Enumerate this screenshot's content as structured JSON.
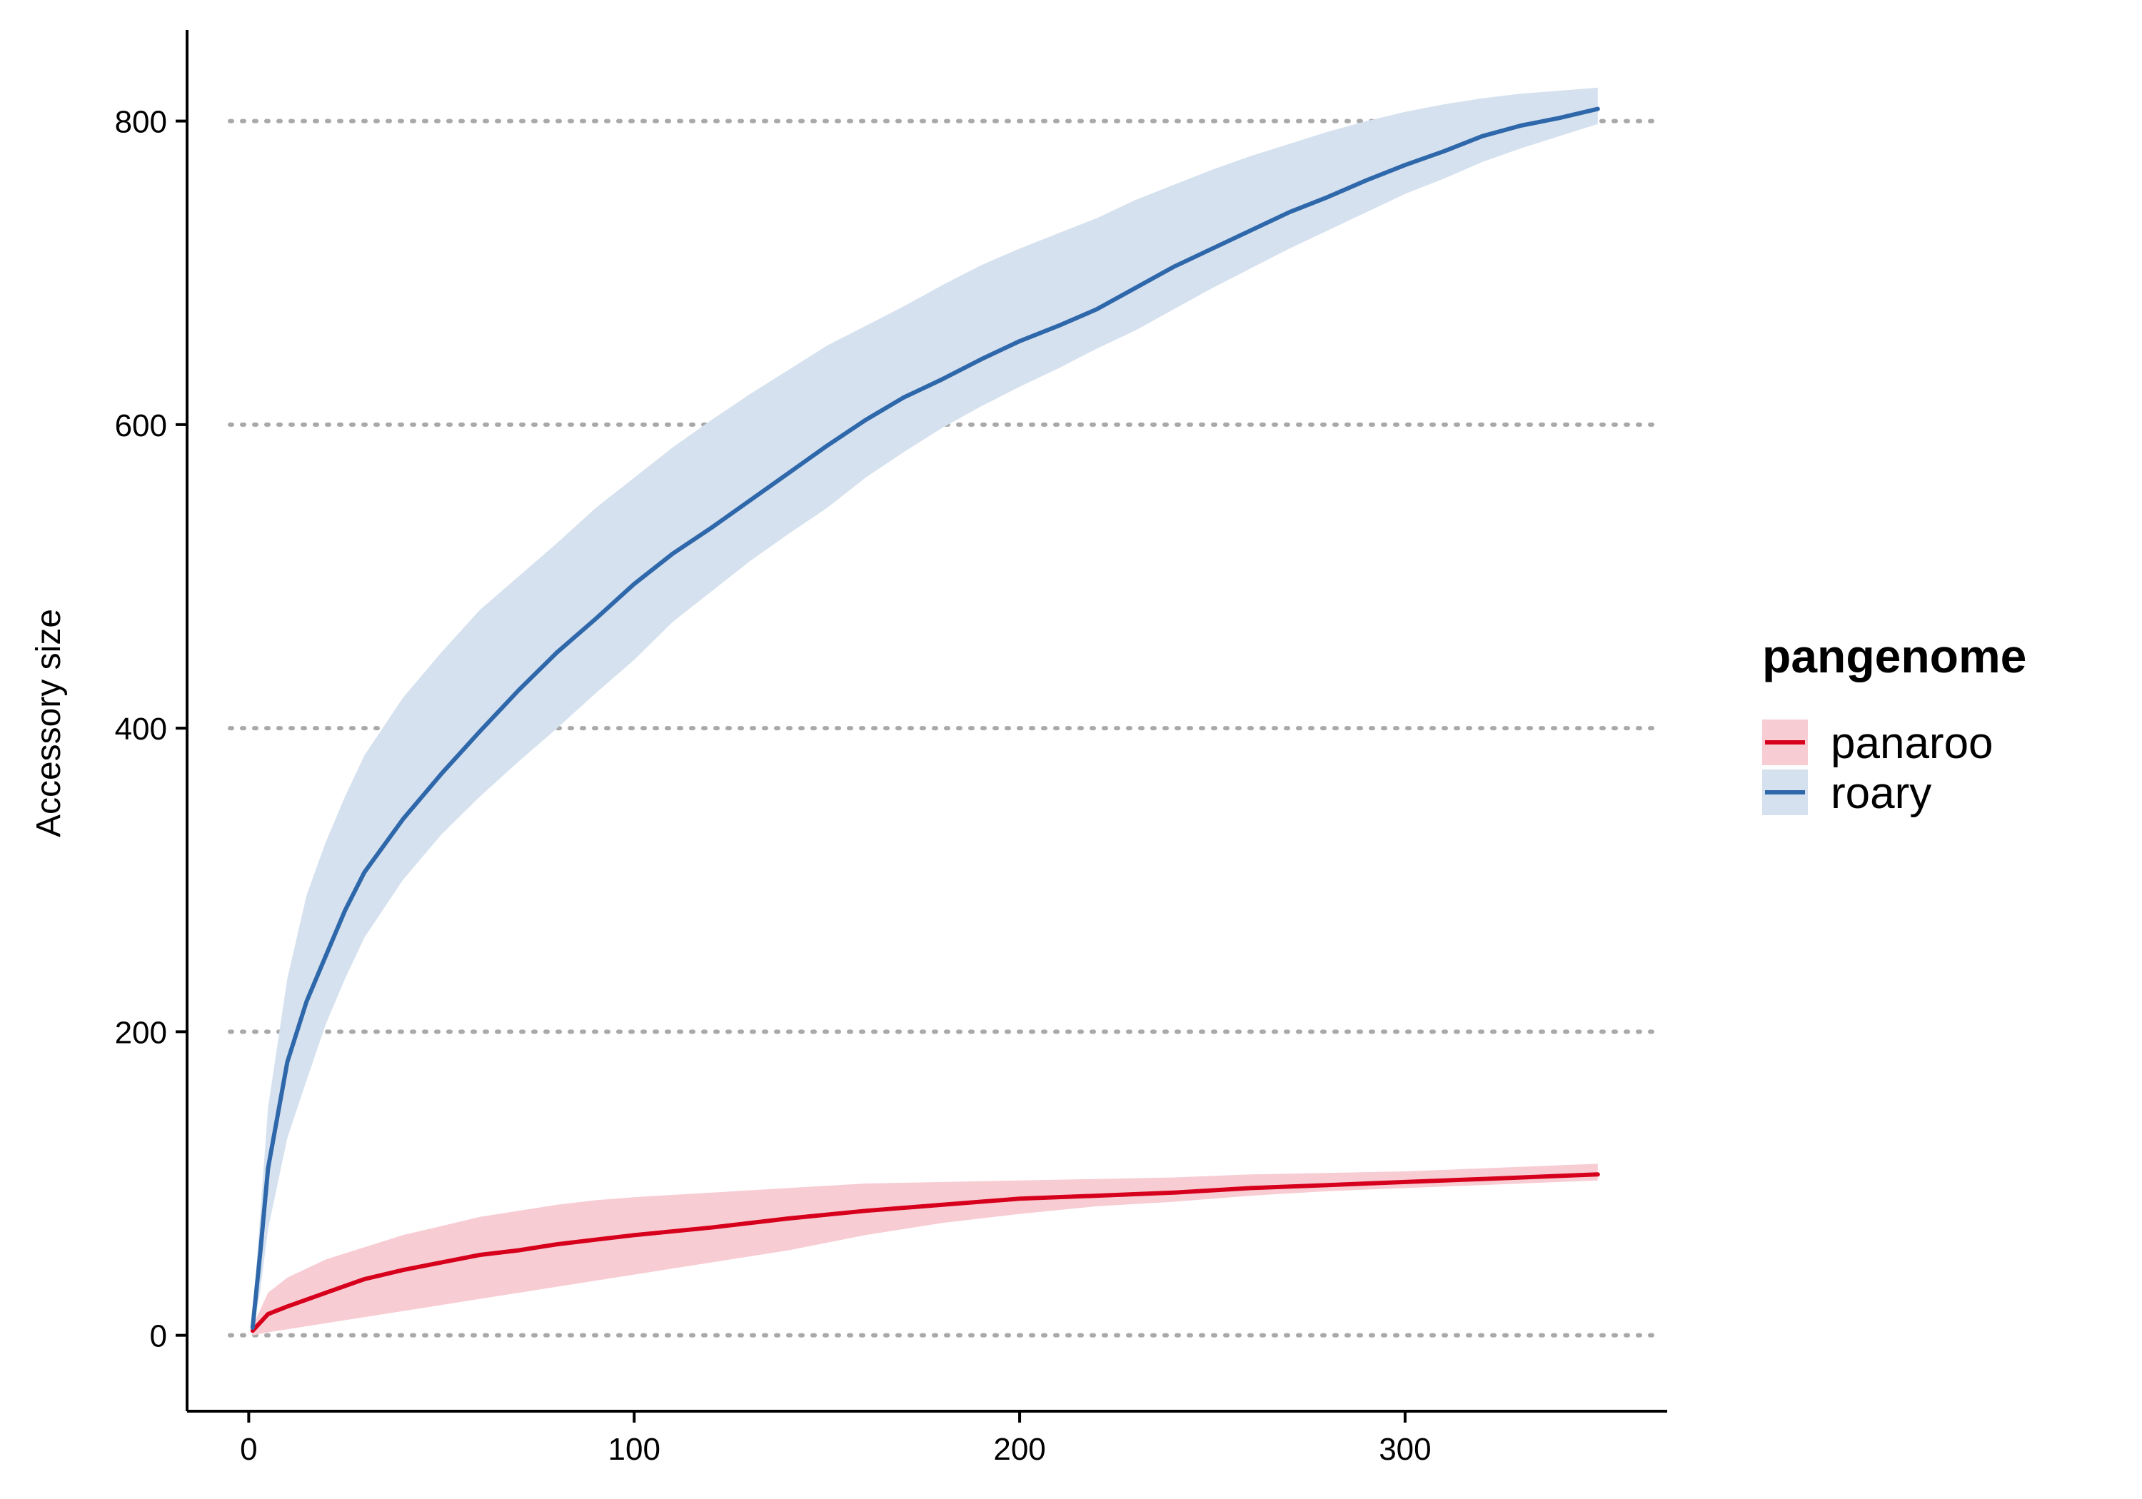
{
  "chart_data": {
    "type": "line",
    "title": "",
    "xlabel": "",
    "ylabel": "Accessory size",
    "xlim": [
      -16,
      368
    ],
    "ylim": [
      -50,
      860
    ],
    "x_ticks": [
      0,
      100,
      200,
      300
    ],
    "y_ticks": [
      0,
      200,
      400,
      600,
      800
    ],
    "grid": "horizontal dotted at y ticks",
    "legend": {
      "title": "pangenome",
      "position": "right"
    },
    "series": [
      {
        "name": "panaroo",
        "color": "#d7001c",
        "band_color": "#f8ccd3",
        "x": [
          1,
          5,
          10,
          20,
          30,
          40,
          50,
          60,
          70,
          80,
          90,
          100,
          120,
          140,
          160,
          180,
          200,
          220,
          240,
          260,
          280,
          300,
          320,
          340,
          350
        ],
        "y": [
          3,
          14,
          19,
          28,
          37,
          43,
          48,
          53,
          56,
          60,
          63,
          66,
          71,
          77,
          82,
          86,
          90,
          92,
          94,
          97,
          99,
          101,
          103,
          105,
          106
        ],
        "lower": [
          0,
          2,
          4,
          8,
          12,
          16,
          20,
          24,
          28,
          32,
          36,
          40,
          48,
          56,
          66,
          74,
          80,
          85,
          88,
          92,
          95,
          97,
          99,
          101,
          102
        ],
        "upper": [
          6,
          28,
          38,
          50,
          58,
          66,
          72,
          78,
          82,
          86,
          89,
          91,
          94,
          97,
          100,
          101,
          102,
          103,
          104,
          106,
          107,
          108,
          110,
          112,
          113
        ]
      },
      {
        "name": "roary",
        "color": "#2f68aa",
        "band_color": "#d5e1ef",
        "x": [
          1,
          3,
          5,
          10,
          15,
          20,
          25,
          30,
          40,
          50,
          60,
          70,
          80,
          90,
          100,
          110,
          120,
          130,
          140,
          150,
          160,
          170,
          180,
          190,
          200,
          210,
          220,
          230,
          240,
          250,
          260,
          270,
          280,
          290,
          300,
          310,
          320,
          330,
          340,
          350
        ],
        "y": [
          5,
          55,
          110,
          180,
          220,
          250,
          280,
          305,
          340,
          370,
          398,
          425,
          450,
          472,
          495,
          515,
          532,
          550,
          568,
          586,
          603,
          618,
          630,
          643,
          655,
          665,
          676,
          690,
          704,
          716,
          728,
          740,
          750,
          761,
          771,
          780,
          790,
          797,
          802,
          808
        ],
        "lower": [
          0,
          30,
          70,
          130,
          168,
          205,
          235,
          262,
          300,
          330,
          355,
          378,
          400,
          423,
          445,
          470,
          490,
          510,
          528,
          545,
          565,
          582,
          598,
          612,
          625,
          637,
          650,
          662,
          676,
          690,
          703,
          716,
          728,
          740,
          752,
          762,
          773,
          782,
          790,
          798
        ],
        "upper": [
          10,
          80,
          150,
          235,
          290,
          325,
          355,
          382,
          420,
          450,
          478,
          500,
          522,
          545,
          565,
          585,
          603,
          620,
          636,
          652,
          665,
          678,
          692,
          705,
          716,
          726,
          736,
          748,
          758,
          768,
          777,
          785,
          793,
          800,
          806,
          811,
          815,
          818,
          820,
          822
        ]
      }
    ]
  }
}
